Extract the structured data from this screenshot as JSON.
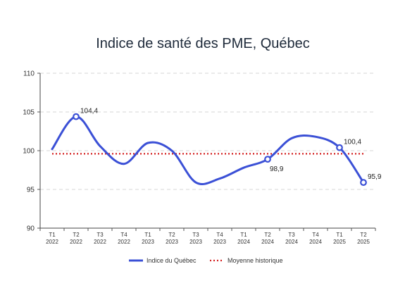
{
  "chart_data": {
    "type": "line",
    "title": "Indice de santé des PME, Québec",
    "xlabel": "",
    "ylabel": "",
    "ylim": [
      90,
      110
    ],
    "yticks": [
      90,
      95,
      100,
      105,
      110
    ],
    "grid": "horizontal-dashed",
    "legend_position": "bottom",
    "categories": [
      [
        "T1",
        "2022"
      ],
      [
        "T2",
        "2022"
      ],
      [
        "T3",
        "2022"
      ],
      [
        "T4",
        "2022"
      ],
      [
        "T1",
        "2023"
      ],
      [
        "T2",
        "2023"
      ],
      [
        "T3",
        "2023"
      ],
      [
        "T4",
        "2023"
      ],
      [
        "T1",
        "2024"
      ],
      [
        "T2",
        "2024"
      ],
      [
        "T3",
        "2024"
      ],
      [
        "T4",
        "2024"
      ],
      [
        "T1",
        "2025"
      ],
      [
        "T2",
        "2025"
      ]
    ],
    "series": [
      {
        "name": "Indice du Québec",
        "color": "#3b50d6",
        "style": "smooth-line",
        "values": [
          100.2,
          104.4,
          100.6,
          98.3,
          101.0,
          100.0,
          95.9,
          96.4,
          97.8,
          98.9,
          101.6,
          101.8,
          100.4,
          95.9
        ]
      },
      {
        "name": "Moyenne historique",
        "color": "#d42020",
        "style": "dotted-line",
        "constant": 99.6
      }
    ],
    "highlighted_points": [
      {
        "index": 1,
        "label": "104,4",
        "label_side": "right-top"
      },
      {
        "index": 9,
        "label": "98,9",
        "label_side": "below"
      },
      {
        "index": 12,
        "label": "100,4",
        "label_side": "right-top"
      },
      {
        "index": 13,
        "label": "95,9",
        "label_side": "right-top"
      }
    ]
  }
}
